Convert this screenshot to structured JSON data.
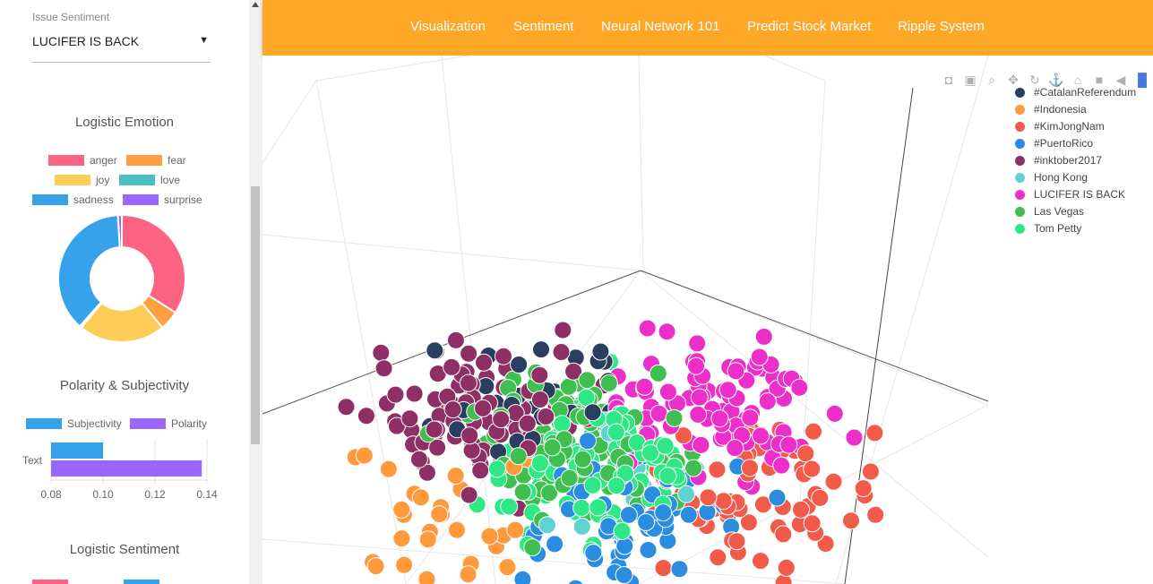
{
  "sidebar": {
    "select_label": "Issue Sentiment",
    "select_value": "LUCIFER IS BACK",
    "emotion_title": "Logistic Emotion",
    "emotion_legend": [
      {
        "label": "anger",
        "color": "#ff6384"
      },
      {
        "label": "fear",
        "color": "#ff9f40"
      },
      {
        "label": "joy",
        "color": "#ffcd56"
      },
      {
        "label": "love",
        "color": "#4bc0c0"
      },
      {
        "label": "sadness",
        "color": "#36a2eb"
      },
      {
        "label": "surprise",
        "color": "#9966ff"
      }
    ],
    "polarity_title": "Polarity & Subjectivity",
    "polarity_legend": [
      {
        "label": "Subjectivity",
        "color": "#36a2eb"
      },
      {
        "label": "Polarity",
        "color": "#9966ff"
      }
    ],
    "sentiment_title": "Logistic Sentiment"
  },
  "chart_data": [
    {
      "type": "pie",
      "title": "Logistic Emotion",
      "categories": [
        "anger",
        "fear",
        "joy",
        "love",
        "sadness",
        "surprise"
      ],
      "values": [
        0.34,
        0.05,
        0.22,
        0.005,
        0.375,
        0.01
      ],
      "legend": "top"
    },
    {
      "type": "bar",
      "title": "Polarity & Subjectivity",
      "orientation": "horizontal",
      "categories": [
        "Text"
      ],
      "series": [
        {
          "name": "Subjectivity",
          "values": [
            0.1
          ]
        },
        {
          "name": "Polarity",
          "values": [
            0.138
          ]
        }
      ],
      "xlim": [
        0.08,
        0.14
      ],
      "xticks": [
        "0.08",
        "0.10",
        "0.12",
        "0.14"
      ],
      "legend": "top"
    },
    {
      "type": "scatter",
      "dimensions": 3,
      "series": [
        {
          "name": "#CatalanReferendum",
          "color": "#2a3f5f"
        },
        {
          "name": "#Indonesia",
          "color": "#ff9a3c"
        },
        {
          "name": "#KimJongNam",
          "color": "#f25a4a"
        },
        {
          "name": "#PuertoRico",
          "color": "#2b8de0"
        },
        {
          "name": "#inktober2017",
          "color": "#8e2f66"
        },
        {
          "name": "Hong Kong",
          "color": "#5fd3d3"
        },
        {
          "name": "LUCIFER IS BACK",
          "color": "#ec2fc8"
        },
        {
          "name": "Las Vegas",
          "color": "#3fbf4f"
        },
        {
          "name": "Tom Petty",
          "color": "#2ee885"
        }
      ],
      "legend": "top-right"
    }
  ],
  "nav": {
    "links": [
      "Visualization",
      "Sentiment",
      "Neural Network 101",
      "Predict Stock Market",
      "Ripple System"
    ]
  },
  "modebar": [
    "camera-icon",
    "save-icon",
    "zoom-icon",
    "pan-icon",
    "orbit-icon",
    "turntable-icon",
    "home-icon",
    "camera-reset-icon",
    "hover-icon",
    "plotly-logo"
  ]
}
